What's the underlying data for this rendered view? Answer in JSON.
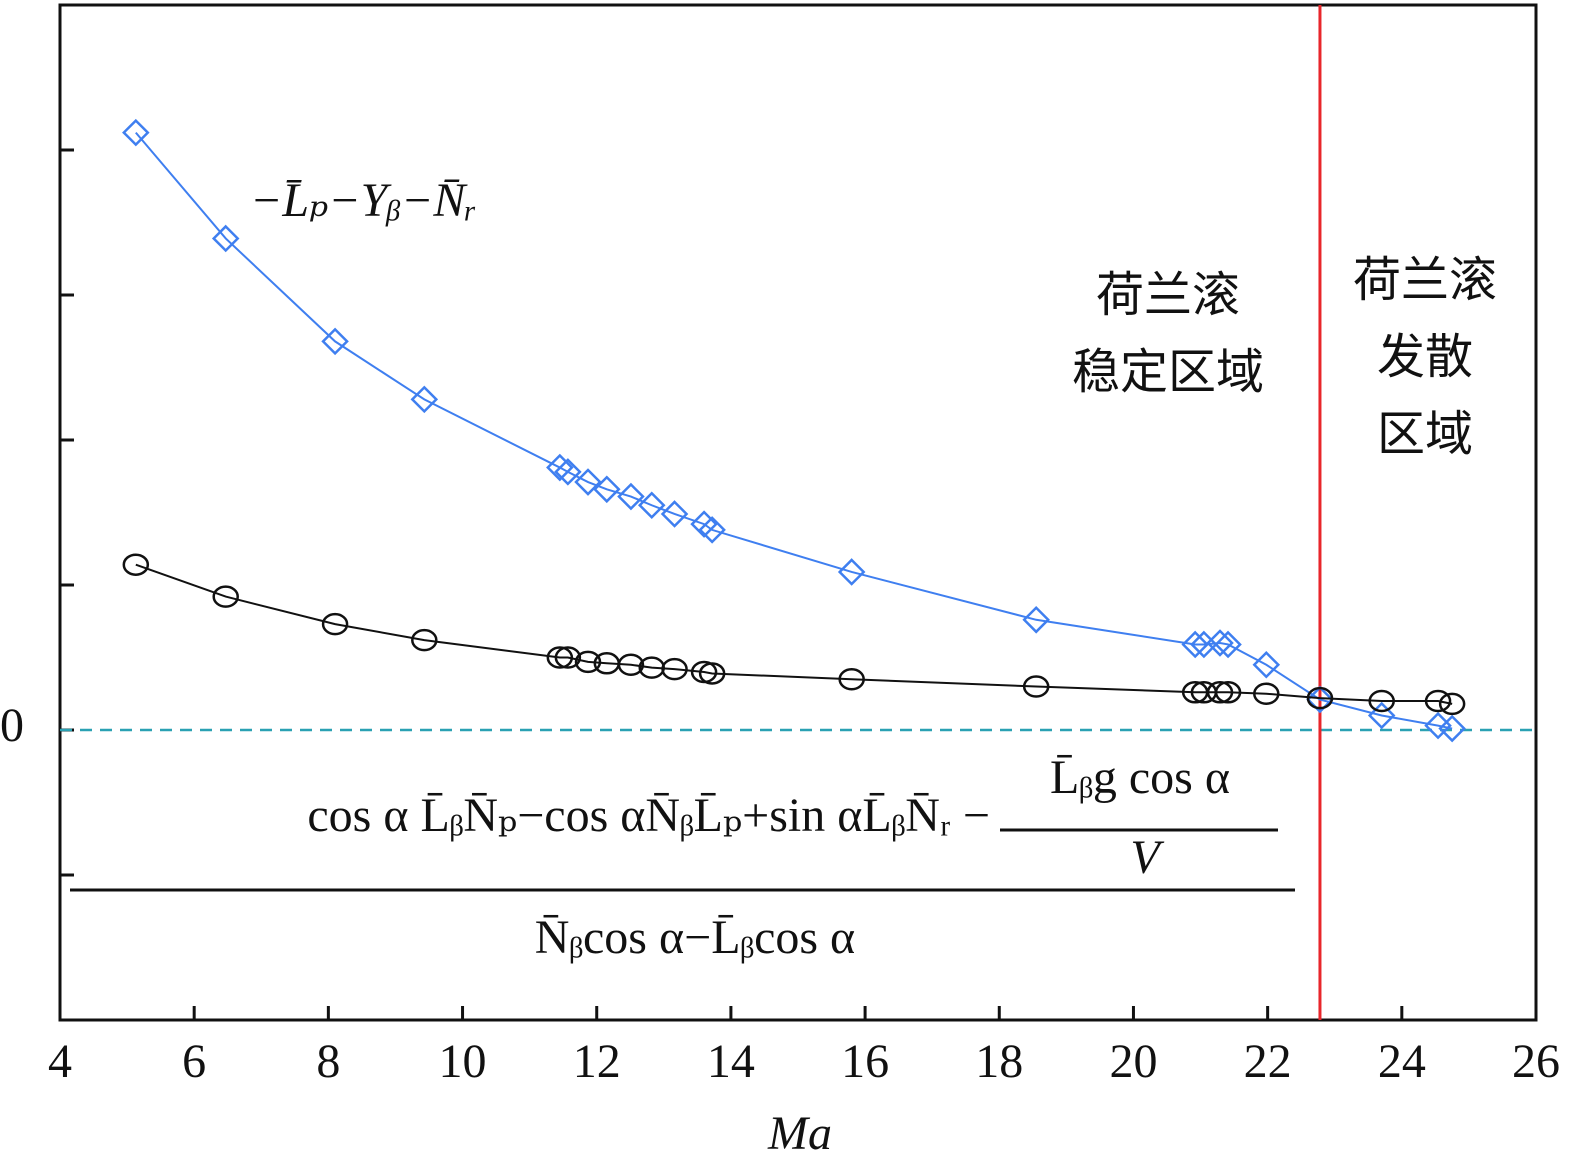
{
  "chart_data": {
    "type": "line",
    "x_label": "Ma",
    "x": [
      5.13,
      6.47,
      8.1,
      9.43,
      11.45,
      11.57,
      11.87,
      12.15,
      12.51,
      12.82,
      13.16,
      13.6,
      13.72,
      15.8,
      18.55,
      20.92,
      21.05,
      21.29,
      21.41,
      21.98,
      22.78,
      23.7,
      24.54,
      24.75
    ],
    "series": [
      {
        "name": "−L̄ₚ−Yᵦ−N̄ᵣ",
        "color": "#3f7ff0",
        "marker": "diamond",
        "values": [
          4.12,
          3.39,
          2.68,
          2.28,
          1.81,
          1.78,
          1.71,
          1.66,
          1.61,
          1.55,
          1.49,
          1.42,
          1.38,
          1.09,
          0.76,
          0.59,
          0.59,
          0.6,
          0.59,
          0.45,
          0.21,
          0.1,
          0.03,
          0.01
        ]
      },
      {
        "color": "#111111",
        "marker": "circle",
        "values": [
          1.14,
          0.92,
          0.73,
          0.62,
          0.5,
          0.5,
          0.47,
          0.46,
          0.45,
          0.43,
          0.42,
          0.4,
          0.39,
          0.35,
          0.3,
          0.26,
          0.26,
          0.26,
          0.26,
          0.25,
          0.22,
          0.2,
          0.2,
          0.18
        ]
      }
    ],
    "formula": {
      "numerator": "cos α L̄ᵦN̄ₚ−cos αN̄ᵦL̄ₚ+sin αL̄ᵦN̄ᵣ −",
      "inner_numerator": "L̄ᵦg cos α",
      "inner_denominator": "V",
      "denominator": "N̄ᵦcos α−L̄ᵦcos α"
    },
    "boundary": {
      "x": 22.78,
      "color": "#e8262b"
    },
    "regions": [
      {
        "lines": [
          "荷兰滚",
          "稳定区域"
        ]
      },
      {
        "lines": [
          "荷兰滚",
          "发散",
          "区域"
        ]
      }
    ],
    "zero_line_color": "#2aa1b3",
    "xlim": [
      4,
      26
    ],
    "xticks": [
      4,
      6,
      8,
      10,
      12,
      14,
      16,
      18,
      20,
      22,
      24,
      26
    ],
    "ylim": [
      -2,
      5
    ],
    "yticks": [
      0
    ],
    "minor_yticks": [
      -1,
      1,
      2,
      3,
      4
    ]
  }
}
